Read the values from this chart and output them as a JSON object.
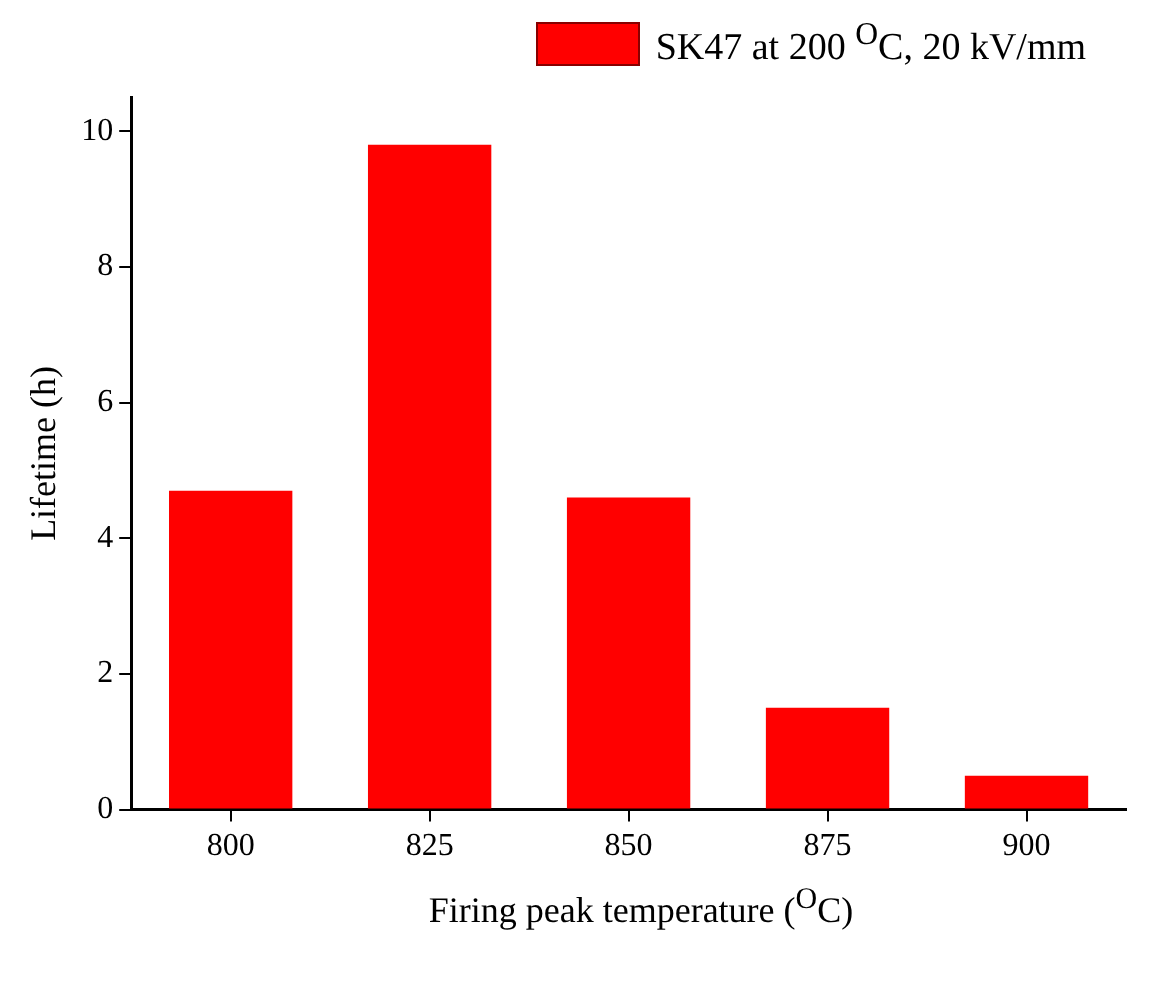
{
  "chart_data": {
    "type": "bar",
    "xlabel": "Firing peak temperature ($^{O}$C)",
    "ylabel": "Lifetime (h)",
    "categories": [
      "800",
      "825",
      "850",
      "875",
      "900"
    ],
    "series": [
      {
        "name": "SK47  at 200 $^{O}$C, 20 kV/mm",
        "color": "#ff0000",
        "values": [
          4.7,
          9.8,
          4.6,
          1.5,
          0.5
        ]
      }
    ],
    "ylim": [
      0,
      10.5
    ],
    "yticks": [
      0,
      2,
      4,
      6,
      8,
      10
    ],
    "legend": "top right"
  }
}
